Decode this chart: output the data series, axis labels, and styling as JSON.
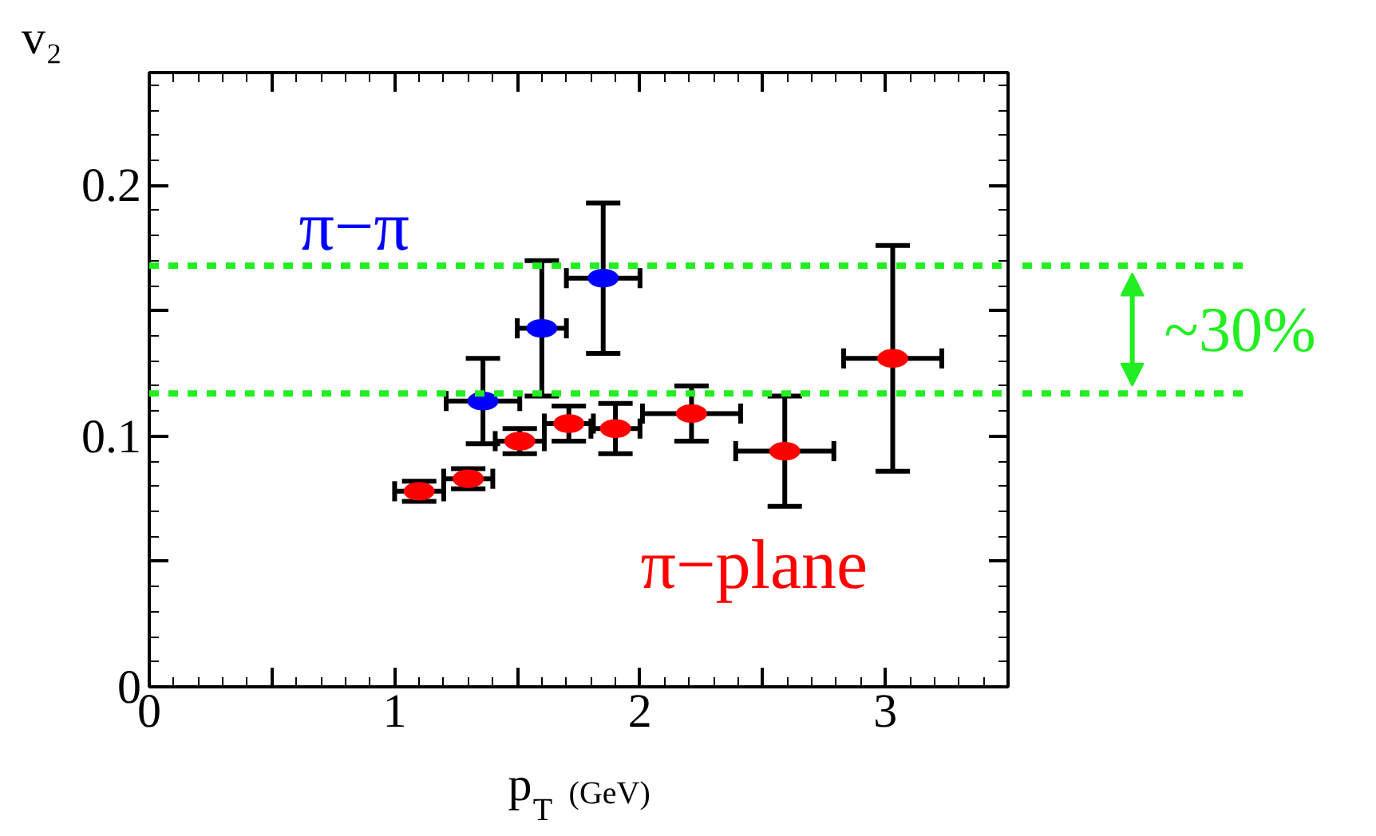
{
  "chart_data": {
    "type": "scatter",
    "xlabel": "p$_{T}$ (GeV)",
    "ylabel": "v₂",
    "xlim": [
      0,
      3.5
    ],
    "ylim": [
      0,
      0.245
    ],
    "xticks": [
      0,
      {
        "value": 0.5,
        "label": null
      },
      1,
      {
        "value": 1.5,
        "label": null
      },
      2,
      {
        "value": 2.5,
        "label": null
      },
      3
    ],
    "yticks": [
      0,
      {
        "value": 0.05,
        "label": null
      },
      0.1,
      {
        "value": 0.15,
        "label": null
      },
      0.2
    ],
    "grid": false,
    "marker": "circle",
    "series": [
      {
        "name": "π−π",
        "color": "#0000ff",
        "x": [
          1.36,
          1.6,
          1.85
        ],
        "values": [
          0.114,
          0.143,
          0.163
        ],
        "errors": [
          0.017,
          0.027,
          0.03
        ],
        "xerrors": [
          0.15,
          0.1,
          0.15
        ]
      },
      {
        "name": "π−plane",
        "color": "#ff0000",
        "x": [
          1.1,
          1.3,
          1.51,
          1.71,
          1.9,
          2.21,
          2.59,
          3.03
        ],
        "values": [
          0.078,
          0.083,
          0.098,
          0.105,
          0.103,
          0.109,
          0.094,
          0.131
        ],
        "errors": [
          0.004,
          0.004,
          0.005,
          0.007,
          0.01,
          0.011,
          0.022,
          0.045
        ],
        "xerrors": [
          0.1,
          0.1,
          0.1,
          0.1,
          0.1,
          0.2,
          0.2,
          0.2
        ]
      }
    ],
    "ref_lines": [
      {
        "axis": "y",
        "value": 0.168,
        "label": null,
        "color": "#22ee22",
        "line_style": "dashed"
      },
      {
        "axis": "y",
        "value": 0.117,
        "label": null,
        "color": "#22ee22",
        "line_style": "dashed"
      }
    ],
    "annotations": [
      "~30%"
    ]
  }
}
